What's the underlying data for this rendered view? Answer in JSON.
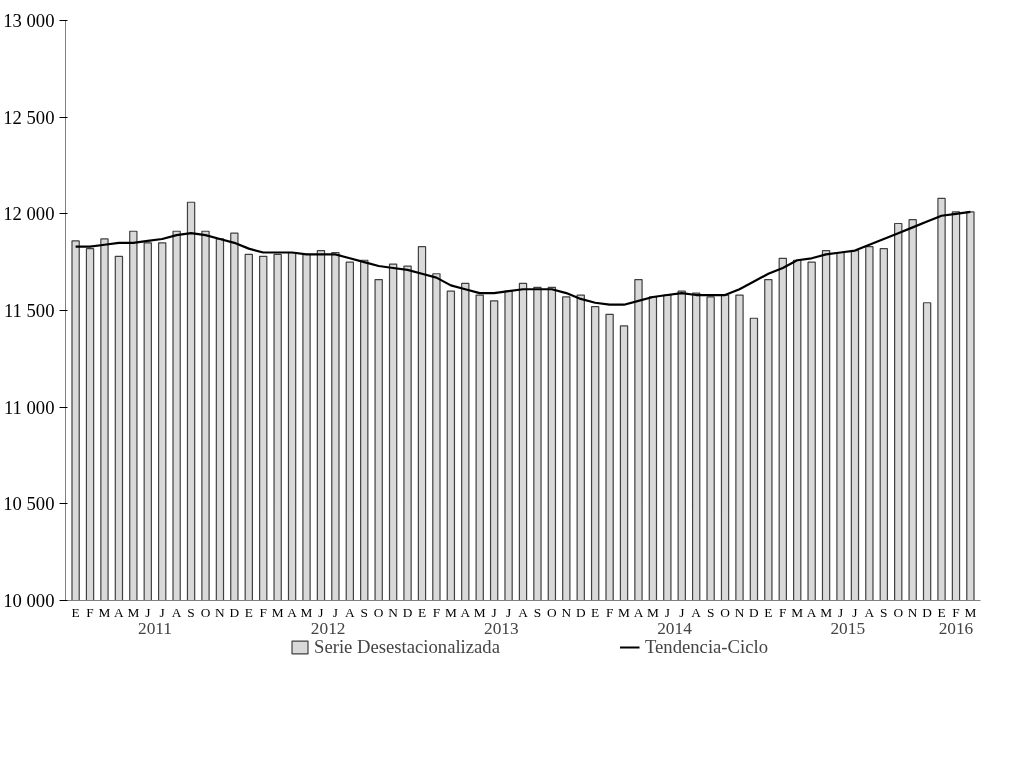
{
  "chart_data": {
    "type": "bar",
    "categories": [
      "E",
      "F",
      "M",
      "A",
      "M",
      "J",
      "J",
      "A",
      "S",
      "O",
      "N",
      "D",
      "E",
      "F",
      "M",
      "A",
      "M",
      "J",
      "J",
      "A",
      "S",
      "O",
      "N",
      "D",
      "E",
      "F",
      "M",
      "A",
      "M",
      "J",
      "J",
      "A",
      "S",
      "O",
      "N",
      "D",
      "E",
      "F",
      "M",
      "A",
      "M",
      "J",
      "J",
      "A",
      "S",
      "O",
      "N",
      "D",
      "E",
      "F",
      "M",
      "A",
      "M",
      "J",
      "J",
      "A",
      "S",
      "O",
      "N",
      "D",
      "E",
      "F",
      "M"
    ],
    "series": [
      {
        "name": "Serie Desestacionalizada",
        "color": "#d9d9d9",
        "values": [
          11860,
          11820,
          11870,
          11780,
          11910,
          11850,
          11850,
          11910,
          12060,
          11910,
          11870,
          11900,
          11790,
          11780,
          11790,
          11800,
          11790,
          11810,
          11800,
          11750,
          11760,
          11660,
          11740,
          11730,
          11830,
          11690,
          11600,
          11640,
          11580,
          11550,
          11600,
          11640,
          11620,
          11620,
          11570,
          11580,
          11520,
          11480,
          11420,
          11660,
          11570,
          11580,
          11600,
          11590,
          11570,
          11580,
          11580,
          11460,
          11660,
          11770,
          11760,
          11750,
          11810,
          11800,
          11810,
          11830,
          11820,
          11950,
          11970,
          11540,
          12080,
          12010,
          12010
        ]
      },
      {
        "name": "Tendencia-Ciclo",
        "type": "line",
        "color": "#000000",
        "values": [
          11830,
          11830,
          11840,
          11850,
          11850,
          11860,
          11870,
          11890,
          11900,
          11890,
          11870,
          11850,
          11820,
          11800,
          11800,
          11800,
          11790,
          11790,
          11790,
          11770,
          11750,
          11730,
          11720,
          11710,
          11690,
          11670,
          11630,
          11610,
          11590,
          11590,
          11600,
          11610,
          11610,
          11610,
          11590,
          11560,
          11540,
          11530,
          11530,
          11550,
          11570,
          11580,
          11590,
          11580,
          11580,
          11580,
          11610,
          11650,
          11690,
          11720,
          11760,
          11770,
          11790,
          11800,
          11810,
          11840,
          11870,
          11900,
          11930,
          11960,
          11990,
          12000,
          12010
        ]
      }
    ],
    "ylim": [
      10000,
      13000
    ],
    "yticks": [
      {
        "value": 10000,
        "label": "10 000"
      },
      {
        "value": 10500,
        "label": "10 500"
      },
      {
        "value": 11000,
        "label": "11 000"
      },
      {
        "value": 11500,
        "label": "11 500"
      },
      {
        "value": 12000,
        "label": "12 000"
      },
      {
        "value": 12500,
        "label": "12 500"
      },
      {
        "value": 13000,
        "label": "13 000"
      }
    ],
    "annotations": [
      "2011",
      "2012",
      "2013",
      "2014",
      "2015",
      "2016"
    ],
    "grid": false,
    "legend": "bottom"
  }
}
